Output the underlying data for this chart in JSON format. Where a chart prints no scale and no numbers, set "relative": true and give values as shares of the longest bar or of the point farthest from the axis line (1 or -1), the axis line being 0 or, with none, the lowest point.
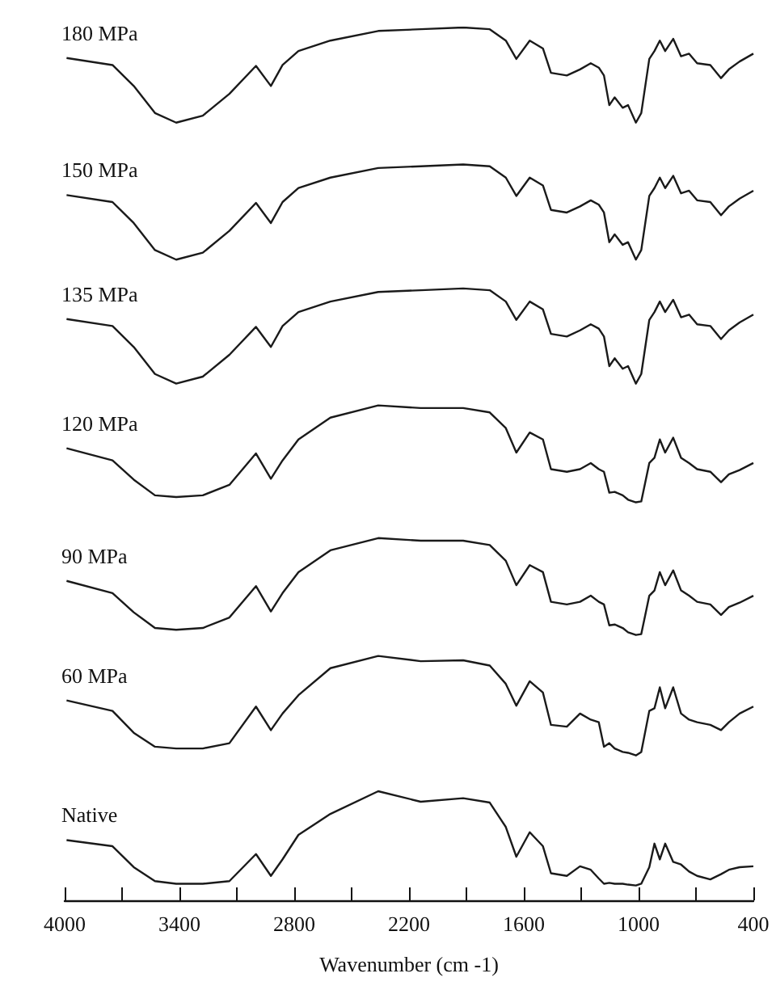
{
  "chart_data": {
    "type": "line",
    "relative": true,
    "xlabel": "Wavenumber (cm -1)",
    "xlim": [
      4000,
      400
    ],
    "xticks": [
      4000,
      {
        "value": 3700,
        "label": null
      },
      3400,
      {
        "value": 3100,
        "label": null
      },
      2800,
      {
        "value": 2500,
        "label": null
      },
      2200,
      {
        "value": 1900,
        "label": null
      },
      1600,
      {
        "value": 1300,
        "label": null
      },
      1000,
      {
        "value": 700,
        "label": null
      },
      400
    ],
    "marker": "none",
    "line_style": "solid",
    "x": [
      3990,
      3750,
      3639,
      3528,
      3417,
      3278,
      3139,
      3000,
      2922,
      2861,
      2778,
      2611,
      2361,
      2139,
      1917,
      1778,
      1694,
      1639,
      1569,
      1500,
      1458,
      1375,
      1306,
      1250,
      1208,
      1181,
      1153,
      1125,
      1083,
      1055,
      1014,
      986,
      944,
      917,
      889,
      861,
      819,
      778,
      736,
      694,
      625,
      569,
      528,
      472,
      400
    ],
    "series": [
      {
        "name": "180 MPa",
        "color": "#1a1a1a",
        "values": [
          0.965,
          0.957,
          0.933,
          0.902,
          0.891,
          0.899,
          0.924,
          0.956,
          0.933,
          0.957,
          0.973,
          0.985,
          0.996,
          0.998,
          1.0,
          0.998,
          0.985,
          0.964,
          0.985,
          0.976,
          0.948,
          0.945,
          0.952,
          0.959,
          0.954,
          0.945,
          0.911,
          0.92,
          0.908,
          0.911,
          0.891,
          0.902,
          0.964,
          0.973,
          0.985,
          0.973,
          0.987,
          0.967,
          0.97,
          0.959,
          0.957,
          0.942,
          0.952,
          0.961,
          0.97
        ]
      },
      {
        "name": "150 MPa",
        "color": "#1a1a1a",
        "values": [
          0.808,
          0.8,
          0.776,
          0.745,
          0.734,
          0.742,
          0.767,
          0.799,
          0.776,
          0.8,
          0.816,
          0.828,
          0.839,
          0.841,
          0.843,
          0.841,
          0.828,
          0.807,
          0.828,
          0.819,
          0.791,
          0.788,
          0.795,
          0.802,
          0.797,
          0.788,
          0.754,
          0.763,
          0.751,
          0.754,
          0.734,
          0.745,
          0.807,
          0.816,
          0.828,
          0.816,
          0.83,
          0.81,
          0.813,
          0.802,
          0.8,
          0.785,
          0.795,
          0.804,
          0.813
        ]
      },
      {
        "name": "135 MPa",
        "color": "#1a1a1a",
        "values": [
          0.666,
          0.658,
          0.634,
          0.603,
          0.592,
          0.6,
          0.625,
          0.657,
          0.634,
          0.658,
          0.674,
          0.686,
          0.697,
          0.699,
          0.701,
          0.699,
          0.686,
          0.665,
          0.686,
          0.677,
          0.649,
          0.646,
          0.653,
          0.66,
          0.655,
          0.646,
          0.612,
          0.621,
          0.609,
          0.612,
          0.592,
          0.603,
          0.665,
          0.674,
          0.686,
          0.674,
          0.688,
          0.668,
          0.671,
          0.66,
          0.658,
          0.643,
          0.653,
          0.662,
          0.671
        ]
      },
      {
        "name": "120 MPa",
        "color": "#1a1a1a",
        "values": [
          0.518,
          0.504,
          0.482,
          0.464,
          0.462,
          0.464,
          0.476,
          0.512,
          0.483,
          0.504,
          0.528,
          0.553,
          0.567,
          0.564,
          0.564,
          0.559,
          0.541,
          0.513,
          0.536,
          0.528,
          0.494,
          0.491,
          0.494,
          0.501,
          0.494,
          0.491,
          0.467,
          0.468,
          0.464,
          0.459,
          0.456,
          0.457,
          0.501,
          0.507,
          0.528,
          0.513,
          0.53,
          0.507,
          0.501,
          0.494,
          0.491,
          0.479,
          0.488,
          0.493,
          0.501
        ]
      },
      {
        "name": "90 MPa",
        "color": "#1a1a1a",
        "values": [
          0.366,
          0.352,
          0.33,
          0.312,
          0.31,
          0.312,
          0.324,
          0.36,
          0.331,
          0.352,
          0.376,
          0.401,
          0.415,
          0.412,
          0.412,
          0.407,
          0.389,
          0.361,
          0.384,
          0.376,
          0.342,
          0.339,
          0.342,
          0.349,
          0.342,
          0.339,
          0.315,
          0.316,
          0.312,
          0.307,
          0.304,
          0.305,
          0.349,
          0.355,
          0.376,
          0.361,
          0.378,
          0.355,
          0.349,
          0.342,
          0.339,
          0.327,
          0.336,
          0.341,
          0.349
        ]
      },
      {
        "name": "60 MPa",
        "color": "#1a1a1a",
        "values": [
          0.229,
          0.217,
          0.192,
          0.176,
          0.174,
          0.174,
          0.18,
          0.222,
          0.195,
          0.214,
          0.235,
          0.266,
          0.28,
          0.274,
          0.275,
          0.269,
          0.248,
          0.223,
          0.251,
          0.238,
          0.201,
          0.199,
          0.214,
          0.207,
          0.204,
          0.176,
          0.18,
          0.174,
          0.17,
          0.169,
          0.166,
          0.17,
          0.217,
          0.22,
          0.244,
          0.22,
          0.244,
          0.214,
          0.207,
          0.204,
          0.201,
          0.195,
          0.204,
          0.214,
          0.222
        ]
      },
      {
        "name": "Native",
        "color": "#1a1a1a",
        "values": [
          0.069,
          0.062,
          0.038,
          0.022,
          0.019,
          0.019,
          0.022,
          0.053,
          0.028,
          0.047,
          0.075,
          0.099,
          0.125,
          0.113,
          0.117,
          0.112,
          0.084,
          0.05,
          0.078,
          0.062,
          0.031,
          0.028,
          0.039,
          0.035,
          0.025,
          0.019,
          0.02,
          0.019,
          0.019,
          0.018,
          0.017,
          0.019,
          0.038,
          0.065,
          0.047,
          0.065,
          0.044,
          0.041,
          0.033,
          0.028,
          0.024,
          0.03,
          0.035,
          0.038,
          0.039
        ]
      }
    ]
  }
}
